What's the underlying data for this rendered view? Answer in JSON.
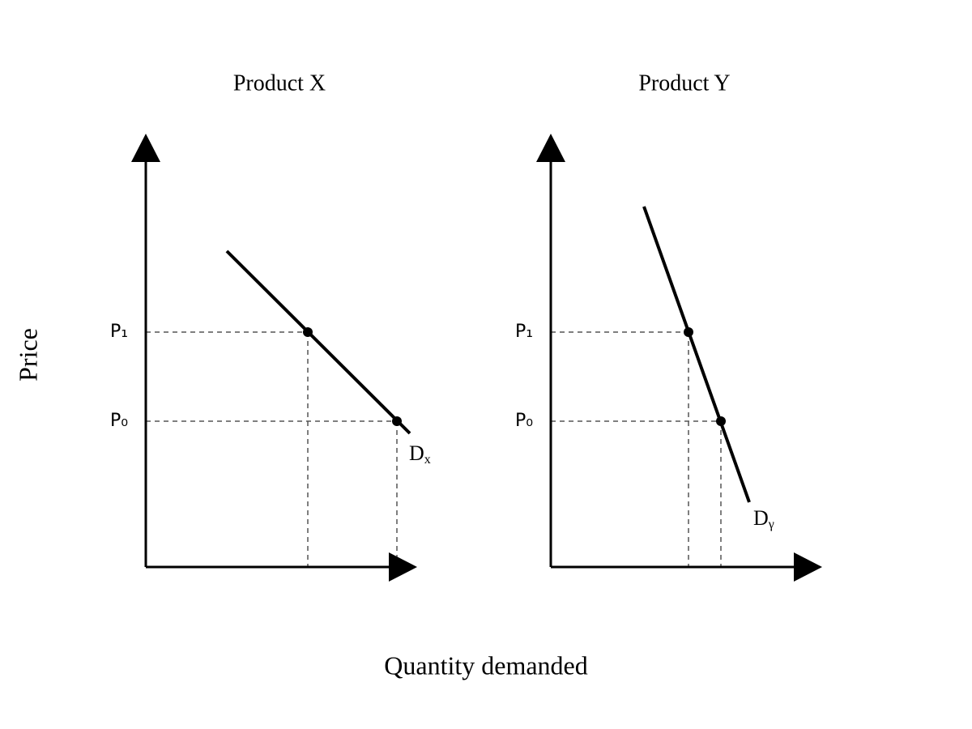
{
  "axis_labels": {
    "y": "Price",
    "x": "Quantity demanded"
  },
  "panels": [
    {
      "title": "Product X",
      "price_labels": [
        "P₁",
        "P₀"
      ],
      "curve_label": "D",
      "curve_subscript": "x"
    },
    {
      "title": "Product Y",
      "price_labels": [
        "P₁",
        "P₀"
      ],
      "curve_label": "D",
      "curve_subscript": "γ"
    }
  ]
}
